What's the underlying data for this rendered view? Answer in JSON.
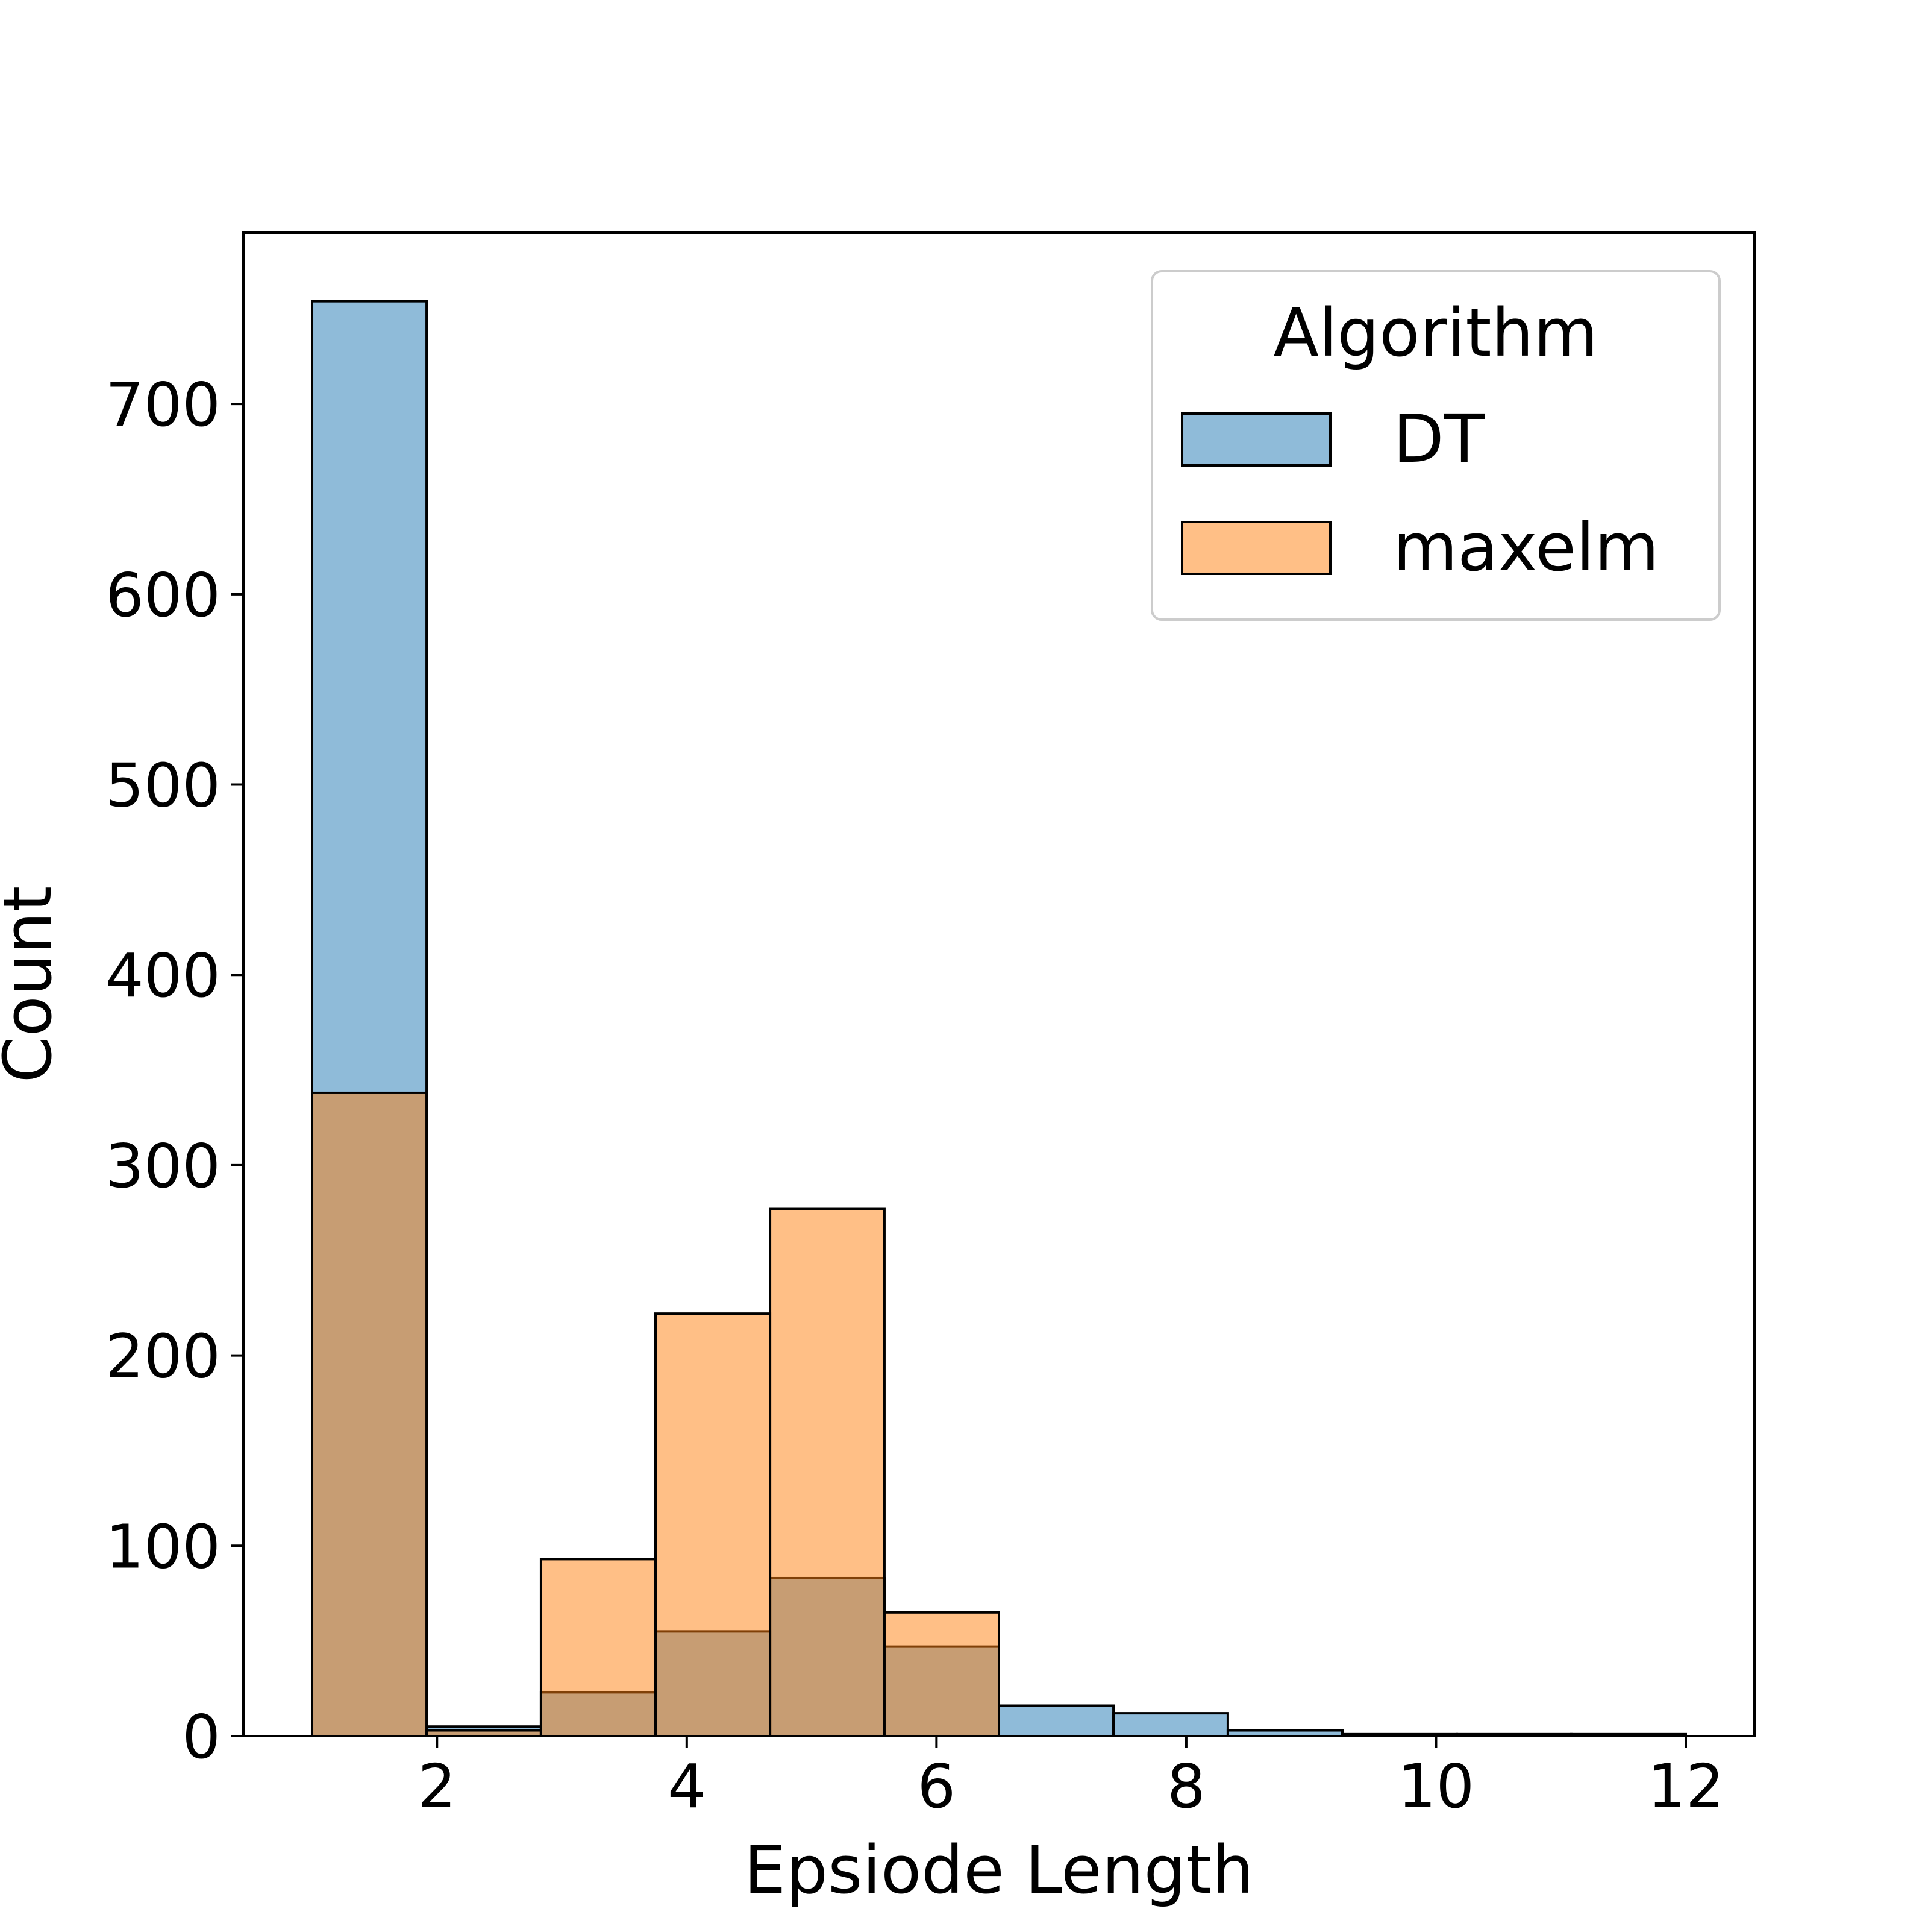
{
  "chart_data": {
    "type": "bar",
    "title": "",
    "xlabel": "Epsiode Length",
    "ylabel": "Count",
    "xlim": [
      0.45,
      12.55
    ],
    "ylim": [
      0,
      790
    ],
    "xticks": [
      2,
      4,
      6,
      8,
      10,
      12
    ],
    "yticks": [
      0,
      100,
      200,
      300,
      400,
      500,
      600,
      700
    ],
    "bins": [
      [
        1.0,
        1.917
      ],
      [
        1.917,
        2.833
      ],
      [
        2.833,
        3.75
      ],
      [
        3.75,
        4.667
      ],
      [
        4.667,
        5.583
      ],
      [
        5.583,
        6.5
      ],
      [
        6.5,
        7.417
      ],
      [
        7.417,
        8.333
      ],
      [
        8.333,
        9.25
      ],
      [
        9.25,
        10.167
      ],
      [
        10.167,
        11.083
      ],
      [
        11.083,
        12.0
      ]
    ],
    "series": [
      {
        "name": "DT",
        "color": "#1f77b4",
        "values": [
          754,
          5,
          23,
          55,
          83,
          47,
          16,
          12,
          3,
          1,
          1,
          1
        ]
      },
      {
        "name": "maxelm",
        "color": "#ff7f0e",
        "values": [
          338,
          3,
          93,
          222,
          277,
          65,
          0,
          0,
          0,
          0,
          0,
          0
        ]
      }
    ],
    "overlap_color": "#929b9d",
    "legend": {
      "title": "Algorithm",
      "position": "top-right"
    },
    "grid": false
  }
}
